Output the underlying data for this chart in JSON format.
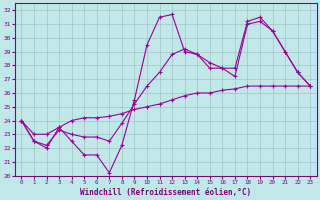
{
  "xlabel": "Windchill (Refroidissement éolien,°C)",
  "bg_color": "#c0e8e8",
  "line_color": "#990099",
  "xlim": [
    -0.5,
    23.5
  ],
  "ylim": [
    20,
    32.5
  ],
  "yticks": [
    20,
    21,
    22,
    23,
    24,
    25,
    26,
    27,
    28,
    29,
    30,
    31,
    32
  ],
  "xticks": [
    0,
    1,
    2,
    3,
    4,
    5,
    6,
    7,
    8,
    9,
    10,
    11,
    12,
    13,
    14,
    15,
    16,
    17,
    18,
    19,
    20,
    21,
    22,
    23
  ],
  "series": [
    {
      "x": [
        0,
        1,
        2,
        3,
        4,
        5,
        6,
        7,
        8,
        9,
        10,
        11,
        12,
        13,
        14,
        15,
        16,
        17,
        18,
        19,
        20,
        21,
        22,
        23
      ],
      "y": [
        24,
        22.5,
        22,
        23.5,
        22.5,
        21.5,
        21.5,
        20.2,
        22.2,
        25.5,
        29.5,
        31.5,
        31.7,
        29.0,
        28.8,
        28.2,
        27.8,
        27.8,
        31.2,
        31.5,
        30.5,
        29.0,
        27.5,
        26.5
      ]
    },
    {
      "x": [
        0,
        1,
        2,
        3,
        4,
        5,
        6,
        7,
        8,
        9,
        10,
        11,
        12,
        13,
        14,
        15,
        16,
        17,
        18,
        19,
        20,
        21,
        22,
        23
      ],
      "y": [
        24,
        22.5,
        22.2,
        23.3,
        23.0,
        22.8,
        22.8,
        22.5,
        23.8,
        25.2,
        26.5,
        27.5,
        28.8,
        29.2,
        28.8,
        27.8,
        27.8,
        27.2,
        31.0,
        31.2,
        30.5,
        29.0,
        27.5,
        26.5
      ]
    },
    {
      "x": [
        0,
        1,
        2,
        3,
        4,
        5,
        6,
        7,
        8,
        9,
        10,
        11,
        12,
        13,
        14,
        15,
        16,
        17,
        18,
        19,
        20,
        21,
        22,
        23
      ],
      "y": [
        24,
        23.0,
        23.0,
        23.5,
        24.0,
        24.2,
        24.2,
        24.3,
        24.5,
        24.8,
        25.0,
        25.2,
        25.5,
        25.8,
        26.0,
        26.0,
        26.2,
        26.3,
        26.5,
        26.5,
        26.5,
        26.5,
        26.5,
        26.5
      ]
    }
  ],
  "grid_color": "#a0b8b8",
  "marker": "+"
}
